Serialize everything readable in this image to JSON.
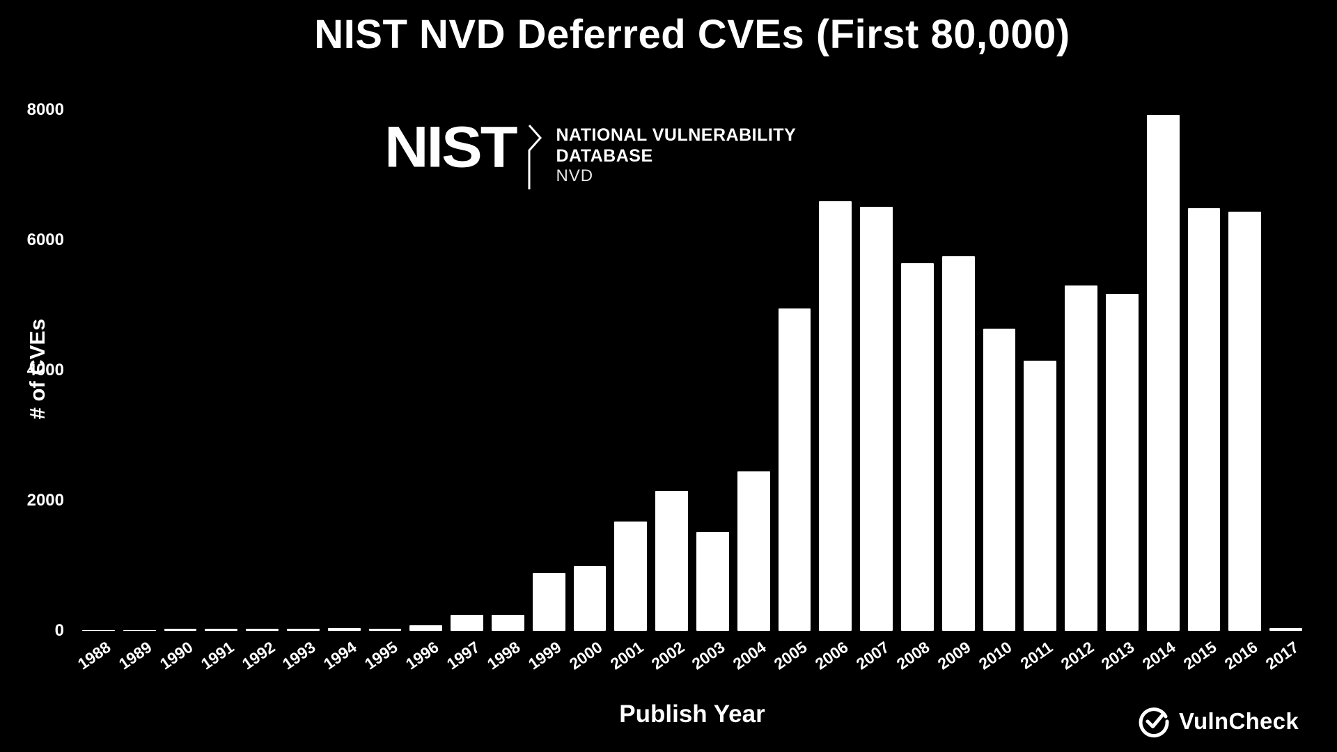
{
  "title": "NIST NVD Deferred CVEs (First 80,000)",
  "colors": {
    "background": "#000000",
    "bar": "#ffffff",
    "text": "#ffffff"
  },
  "nist_logo": {
    "wordmark": "NIST",
    "line1": "NATIONAL VULNERABILITY",
    "line2": "DATABASE",
    "line3": "NVD"
  },
  "vulncheck": {
    "label": "VulnCheck"
  },
  "chart_data": {
    "type": "bar",
    "title": "NIST NVD Deferred CVEs (First 80,000)",
    "xlabel": "Publish Year",
    "ylabel": "# of CVEs",
    "ylim": [
      0,
      8000
    ],
    "yticks": [
      0,
      2000,
      4000,
      6000,
      8000
    ],
    "grid": false,
    "legend": false,
    "categories": [
      "1988",
      "1989",
      "1990",
      "1991",
      "1992",
      "1993",
      "1994",
      "1995",
      "1996",
      "1997",
      "1998",
      "1999",
      "2000",
      "2001",
      "2002",
      "2003",
      "2004",
      "2005",
      "2006",
      "2007",
      "2008",
      "2009",
      "2010",
      "2011",
      "2012",
      "2013",
      "2014",
      "2015",
      "2016",
      "2017"
    ],
    "values": [
      10,
      10,
      35,
      35,
      35,
      35,
      40,
      30,
      90,
      250,
      250,
      890,
      1000,
      1680,
      2150,
      1520,
      2450,
      4950,
      6600,
      6510,
      5650,
      5750,
      4640,
      4150,
      5300,
      5180,
      7920,
      6490,
      6440,
      40
    ]
  }
}
